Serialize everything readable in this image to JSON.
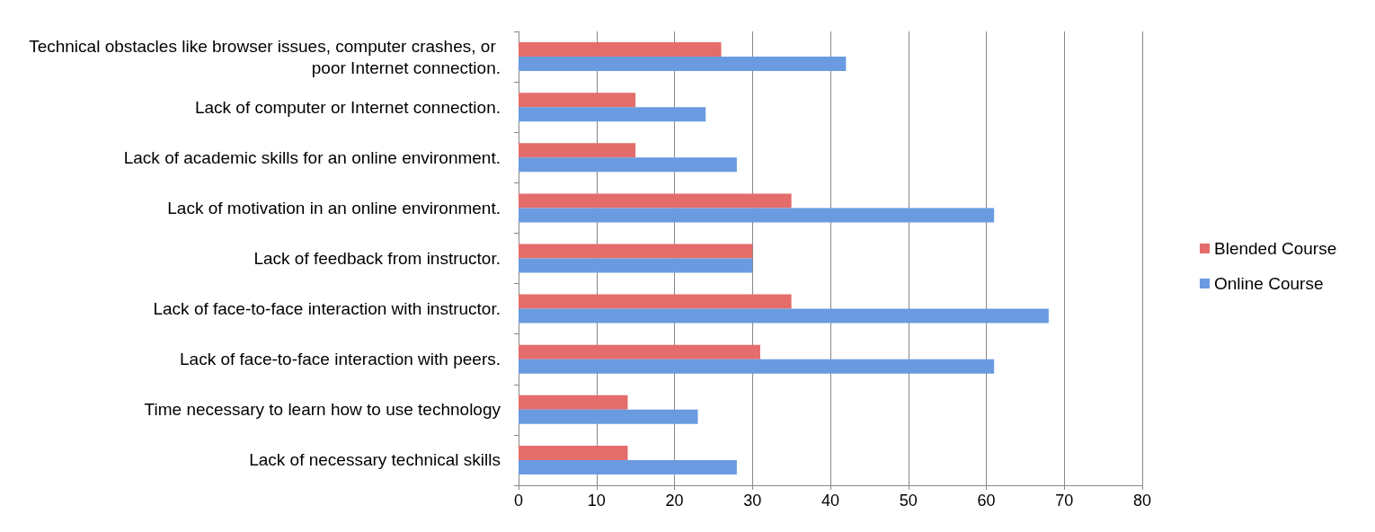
{
  "chart_data": {
    "type": "bar",
    "orientation": "horizontal",
    "categories": [
      "Technical obstacles like browser issues, computer crashes, or poor Internet connection.",
      "Lack of computer or Internet connection.",
      "Lack of academic skills for an online environment.",
      "Lack of motivation in an online environment.",
      "Lack of feedback from instructor.",
      "Lack of face-to-face interaction with instructor.",
      "Lack of face-to-face interaction with peers.",
      "Time necessary to learn how to use technology",
      "Lack of necessary technical skills"
    ],
    "series": [
      {
        "name": "Blended Course",
        "color": "#e46c6a",
        "values": [
          26,
          15,
          15,
          35,
          30,
          35,
          31,
          14,
          14
        ]
      },
      {
        "name": "Online Course",
        "color": "#6a9be0",
        "values": [
          42,
          24,
          28,
          61,
          30,
          68,
          61,
          23,
          28
        ]
      }
    ],
    "xlim": [
      0,
      80
    ],
    "xticks": [
      0,
      10,
      20,
      30,
      40,
      50,
      60,
      70,
      80
    ],
    "grid": "x",
    "legend": "right"
  }
}
